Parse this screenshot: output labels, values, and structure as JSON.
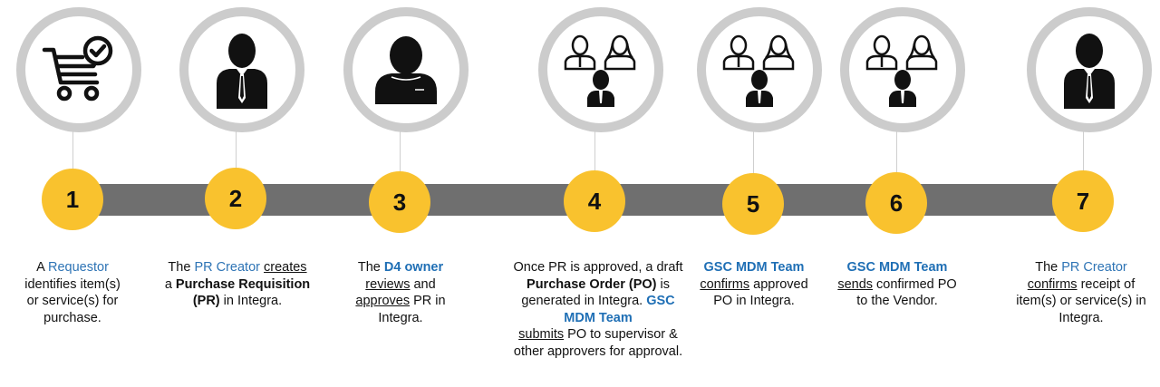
{
  "steps": [
    {
      "number": "1",
      "icon": "shopping-cart-check-icon",
      "text": {
        "t1": "A ",
        "role": "Requestor",
        "t2": "identifies item(s) or service(s) for purchase."
      }
    },
    {
      "number": "2",
      "icon": "businessman-icon",
      "text": {
        "t1": "The ",
        "role": "PR Creator",
        "action": "creates",
        "t2": "a ",
        "bold": "Purchase Requisition (PR)",
        "t3": " in Integra."
      }
    },
    {
      "number": "3",
      "icon": "person-silhouette-icon",
      "text": {
        "t1": "The ",
        "role": "D4 owner",
        "action1": "reviews",
        "t2": " and ",
        "action2": "approves",
        "t3": " PR in Integra."
      }
    },
    {
      "number": "4",
      "icon": "team-icon",
      "text": {
        "t1": "Once PR is approved, a draft ",
        "bold": "Purchase Order (PO)",
        "t2": " is generated in Integra. ",
        "role": "GSC MDM Team",
        "action": "submits",
        "t3": " PO to supervisor & other approvers for approval."
      }
    },
    {
      "number": "5",
      "icon": "team-icon",
      "text": {
        "role": "GSC MDM Team",
        "action": "confirms",
        "t1": " approved PO in Integra."
      }
    },
    {
      "number": "6",
      "icon": "team-icon",
      "text": {
        "role": "GSC MDM Team",
        "action": "sends",
        "t1": " confirmed PO to the Vendor."
      }
    },
    {
      "number": "7",
      "icon": "businessman-icon",
      "text": {
        "t1": "The ",
        "role": "PR Creator",
        "action": "confirms",
        "t2": " receipt of item(s) or service(s) in Integra."
      }
    }
  ],
  "colors": {
    "number_circle": "#f9c22e",
    "timeline_bar": "#6f6f6f",
    "icon_ring": "#cccccc",
    "role_text": "#2e74b5"
  }
}
